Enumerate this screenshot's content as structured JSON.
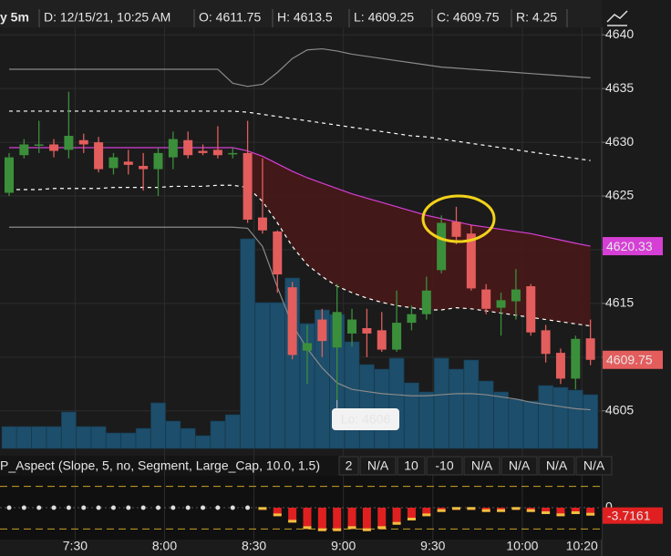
{
  "header": {
    "symbol": "y 5m",
    "date": "D: 12/15/21, 10:25 AM",
    "open": "O: 4611.75",
    "high": "H: 4613.5",
    "low": "L: 4609.25",
    "close": "C: 4609.75",
    "range": "R: 4.25"
  },
  "chart_data": [
    {
      "type": "candlestick",
      "categories": [
        null,
        null,
        null,
        null,
        "7:30",
        null,
        null,
        null,
        null,
        null,
        "8:00",
        null,
        null,
        null,
        null,
        null,
        "8:30",
        null,
        null,
        null,
        null,
        null,
        "9:00",
        null,
        null,
        null,
        null,
        null,
        "9:30",
        null,
        null,
        null,
        null,
        null,
        "10:00",
        null,
        null,
        null,
        "10:20",
        null
      ],
      "open": [
        4625.3,
        4628.8,
        4629.8,
        4629.8,
        4629.3,
        4630.2,
        4630,
        4627.6,
        4628.2,
        4627.8,
        4627.5,
        4628.6,
        4630.2,
        4629.2,
        4629.3,
        4629,
        4629,
        4623,
        4621.7,
        4616.5,
        4610.6,
        4613.5,
        4610.9,
        4612.2,
        4612.7,
        4612.5,
        4610.7,
        4613.2,
        4614,
        4618.1,
        4622.6,
        4621.5,
        4616.3,
        4614.6,
        4615.2,
        4616.6,
        4612.5,
        4610.4,
        4608,
        4611.75
      ],
      "high": [
        4629,
        4630.3,
        4632,
        4630.3,
        4634.7,
        4630.8,
        4630.5,
        4629,
        4629.3,
        4629,
        4629.5,
        4631,
        4631,
        4629.8,
        4631.5,
        4629.5,
        4632,
        4628.5,
        4621.8,
        4617,
        4613,
        4614.5,
        4616.8,
        4614.5,
        4614.5,
        4614.2,
        4616.2,
        4614.8,
        4617.5,
        4623.2,
        4624,
        4622.3,
        4616.8,
        4616,
        4618.2,
        4616.8,
        4613,
        4610.8,
        4612,
        4613.5
      ],
      "low": [
        4625,
        4628.5,
        4629,
        4628.6,
        4628.5,
        4629,
        4627.2,
        4627,
        4627,
        4625.5,
        4625,
        4627.5,
        4628.5,
        4628.8,
        4628.5,
        4628.5,
        4622.5,
        4621.5,
        4616,
        4609.8,
        4607.5,
        4610,
        4606,
        4611,
        4610,
        4610.5,
        4610.5,
        4612.5,
        4613.5,
        4617.8,
        4620.5,
        4616.2,
        4614,
        4612,
        4613.5,
        4612,
        4609.5,
        4607.5,
        4607,
        4609.25
      ],
      "close": [
        4628.6,
        4629.8,
        4629.8,
        4629.2,
        4630.6,
        4629.8,
        4627.5,
        4628.6,
        4627.9,
        4627.5,
        4629,
        4630.3,
        4628.8,
        4629,
        4628.8,
        4629,
        4622.8,
        4621.8,
        4617.7,
        4610.2,
        4611.3,
        4611.5,
        4614.2,
        4613.5,
        4612.2,
        4610.7,
        4613.2,
        4614,
        4616.2,
        4622.5,
        4621.2,
        4616.4,
        4614.5,
        4615.3,
        4616.3,
        4612.3,
        4610.3,
        4608,
        4611.7,
        4609.75
      ],
      "volume": [
        24,
        24,
        24,
        24,
        40,
        24,
        24,
        17,
        17,
        22,
        50,
        30,
        22,
        14,
        30,
        37,
        230,
        160,
        160,
        187,
        137,
        152,
        147,
        117,
        92,
        87,
        99,
        72,
        62,
        99,
        87,
        97,
        74,
        62,
        54,
        52,
        69,
        67,
        64,
        59
      ],
      "up_color": "#3b8f3b",
      "down_color": "#e35d5d",
      "volume_color": "#1d4e6b",
      "fill_color": "#4a1717",
      "lines": [
        {
          "color": "#d63fd6",
          "style": "solid",
          "values": [
            4629.5,
            4629.5,
            4629.5,
            4629.5,
            4629.5,
            4629.5,
            4629.5,
            4629.5,
            4629.5,
            4629.5,
            4629.5,
            4629.5,
            4629.5,
            4629.5,
            4629.5,
            4629.5,
            4629.2,
            4628.7,
            4628,
            4627.3,
            4626.7,
            4626.2,
            4625.7,
            4625.2,
            4624.8,
            4624.4,
            4624,
            4623.6,
            4623.2,
            4622.9,
            4622.6,
            4622.3,
            4622.1,
            4621.9,
            4621.7,
            4621.5,
            4621.2,
            4620.9,
            4620.6,
            4620.33
          ]
        },
        {
          "color": "#ffffff",
          "style": "dashed",
          "values": [
            4632.9,
            4632.9,
            4632.9,
            4632.9,
            4632.9,
            4632.9,
            4632.9,
            4632.9,
            4632.9,
            4632.9,
            4632.9,
            4632.9,
            4632.9,
            4632.9,
            4632.9,
            4632.9,
            4632.8,
            4632.6,
            4632.4,
            4632.2,
            4632,
            4631.8,
            4631.6,
            4631.4,
            4631.2,
            4631,
            4630.8,
            4630.6,
            4630.5,
            4630.3,
            4630.1,
            4629.9,
            4629.7,
            4629.5,
            4629.3,
            4629.1,
            4628.9,
            4628.7,
            4628.5,
            4628.3
          ]
        },
        {
          "color": "#ffffff",
          "style": "dashed",
          "values": [
            4625.6,
            4625.6,
            4625.6,
            4625.7,
            4625.7,
            4625.7,
            4625.7,
            4625.8,
            4625.8,
            4625.8,
            4625.8,
            4625.9,
            4625.9,
            4625.9,
            4626,
            4626,
            4625.8,
            4624.5,
            4622.5,
            4620.3,
            4618.6,
            4617.5,
            4616.6,
            4616,
            4615.5,
            4615.1,
            4614.8,
            4614.6,
            4614.4,
            4614.4,
            4614.6,
            4614.5,
            4614.3,
            4614.1,
            4613.9,
            4613.7,
            4613.5,
            4613.3,
            4613.1,
            4612.9
          ]
        },
        {
          "color": "#8a8a8a",
          "style": "solid",
          "values": [
            4636.8,
            4636.8,
            4636.8,
            4636.8,
            4636.8,
            4636.8,
            4636.8,
            4636.8,
            4636.8,
            4636.8,
            4636.8,
            4636.8,
            4636.8,
            4636.8,
            4636.8,
            4635.5,
            4635.2,
            4635.4,
            4636.5,
            4637.8,
            4638.6,
            4638.7,
            4638.5,
            4638.2,
            4638,
            4637.8,
            4637.6,
            4637.4,
            4637.2,
            4637,
            4636.9,
            4636.8,
            4636.7,
            4636.6,
            4636.5,
            4636.4,
            4636.3,
            4636.2,
            4636.1,
            4636
          ]
        },
        {
          "color": "#8a8a8a",
          "style": "solid",
          "values": [
            4622.1,
            4622.1,
            4622.1,
            4622.1,
            4622.1,
            4622.1,
            4622.1,
            4622.1,
            4622.1,
            4622.1,
            4622.1,
            4622.1,
            4622.1,
            4622.1,
            4622.1,
            4622.1,
            4622,
            4620.3,
            4616.5,
            4613,
            4610.8,
            4609,
            4607.6,
            4607,
            4606.8,
            4606.6,
            4606.5,
            4606.4,
            4606.4,
            4606.5,
            4606.6,
            4606.6,
            4606.5,
            4606.3,
            4606.1,
            4605.8,
            4605.6,
            4605.4,
            4605.2,
            4605.1
          ]
        }
      ],
      "annotation": "Lo: 4606",
      "ylim": [
        4601.5,
        4640.7
      ],
      "yticks": [
        4605,
        4610,
        4615,
        4620,
        4625,
        4630,
        4635,
        4640
      ],
      "grid": true
    },
    {
      "type": "bar",
      "title": "P_Aspect (Slope, 5, no, Segment, Large_Cap, 10.0, 1.5)",
      "title_color": "#e04040",
      "params": [
        {
          "text": "2",
          "color": "#ffffff"
        },
        {
          "text": "N/A",
          "color": "#f3e9a0"
        },
        {
          "text": "10",
          "color": "#ffffff"
        },
        {
          "text": "-10",
          "color": "#ffffff"
        },
        {
          "text": "N/A",
          "color": "#3fbf7f"
        },
        {
          "text": "N/A",
          "color": "#e04040"
        },
        {
          "text": "N/A",
          "color": "#ffffff"
        },
        {
          "text": "N/A",
          "color": "#ffffff"
        }
      ],
      "values": [
        0,
        0,
        0,
        0,
        0,
        0,
        0,
        0,
        0,
        0,
        0,
        0,
        0,
        0,
        0,
        0,
        0,
        -1,
        -4,
        -7,
        -10,
        -11,
        -11,
        -10,
        -11,
        -10,
        -8,
        -6,
        -4,
        -2,
        -1,
        -1,
        -2,
        -2,
        -1,
        -2,
        -3,
        -4,
        -3,
        -3.7161
      ],
      "color": "#e02020",
      "tip_color": "#f0c040",
      "levels": [
        10,
        -10
      ],
      "ylim": [
        -15,
        15
      ],
      "yticks": [
        0
      ]
    }
  ]
}
